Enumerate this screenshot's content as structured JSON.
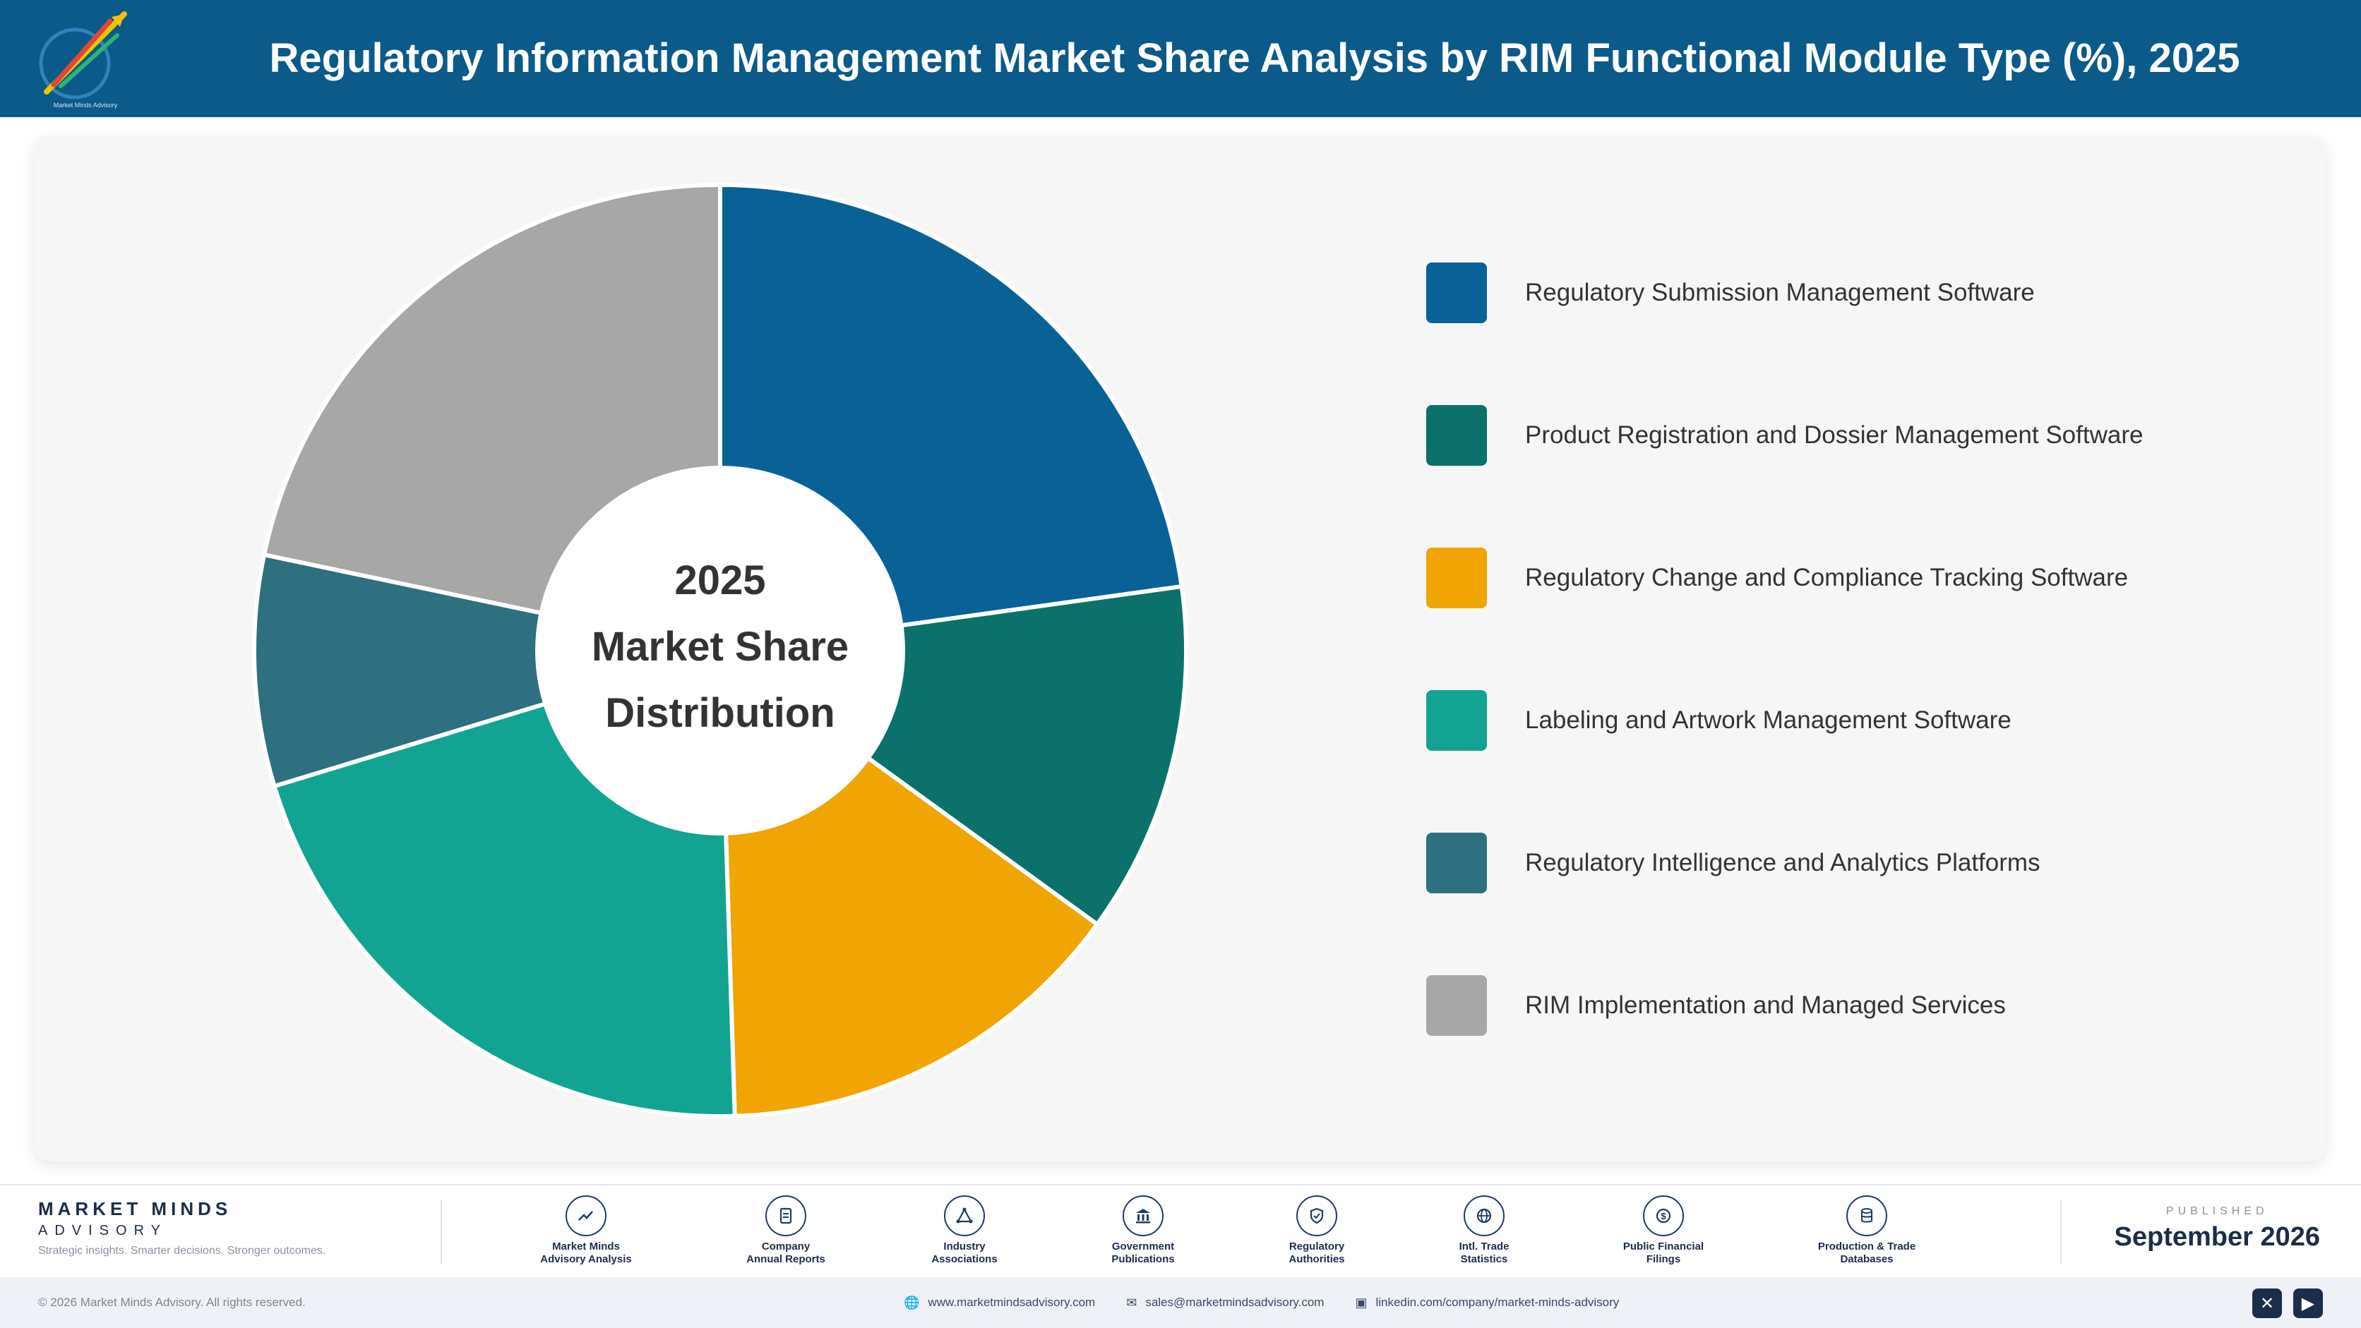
{
  "header": {
    "title": "Regulatory Information Management Market Share Analysis by RIM Functional Module Type (%), 2025"
  },
  "chart_data": {
    "type": "pie",
    "title": "Regulatory Information Management Market Share Analysis by RIM Functional Module Type (%), 2025",
    "center_label": [
      "2025",
      "Market Share",
      "Distribution"
    ],
    "legend_position": "right",
    "slices": [
      {
        "label": "Regulatory Submission Management Software",
        "value": 22.8,
        "color": "#0a6196"
      },
      {
        "label": "Product Registration and Dossier Management Software",
        "value": 12.2,
        "color": "#0c716b"
      },
      {
        "label": "Regulatory Change and Compliance Tracking Software",
        "value": 14.5,
        "color": "#f0a502"
      },
      {
        "label": "Labeling and Artwork Management Software",
        "value": 20.8,
        "color": "#13a392"
      },
      {
        "label": "Regulatory Intelligence and Analytics Platforms",
        "value": 8.0,
        "color": "#2e6f80"
      },
      {
        "label": "RIM Implementation and Managed Services",
        "value": 21.7,
        "color": "#a7a7a7"
      }
    ]
  },
  "footer": {
    "brand_name": "MARKET MINDS",
    "brand_sub": "ADVISORY",
    "brand_tagline": "Strategic insights. Smarter decisions. Stronger outcomes.",
    "sources": [
      {
        "line1": "Market Minds",
        "line2": "Advisory Analysis",
        "icon": "trend-icon"
      },
      {
        "line1": "Company",
        "line2": "Annual Reports",
        "icon": "document-icon"
      },
      {
        "line1": "Industry",
        "line2": "Associations",
        "icon": "network-icon"
      },
      {
        "line1": "Government",
        "line2": "Publications",
        "icon": "government-icon"
      },
      {
        "line1": "Regulatory",
        "line2": "Authorities",
        "icon": "shield-icon"
      },
      {
        "line1": "Intl. Trade",
        "line2": "Statistics",
        "icon": "globe-icon"
      },
      {
        "line1": "Public Financial",
        "line2": "Filings",
        "icon": "dollar-icon"
      },
      {
        "line1": "Production & Trade",
        "line2": "Databases",
        "icon": "database-icon"
      }
    ],
    "published_label": "PUBLISHED",
    "published_date": "September 2026",
    "copyright": "© 2026 Market Minds Advisory. All rights reserved.",
    "website": "www.marketmindsadvisory.com",
    "email": "sales@marketmindsadvisory.com",
    "linkedin": "linkedin.com/company/market-minds-advisory"
  }
}
